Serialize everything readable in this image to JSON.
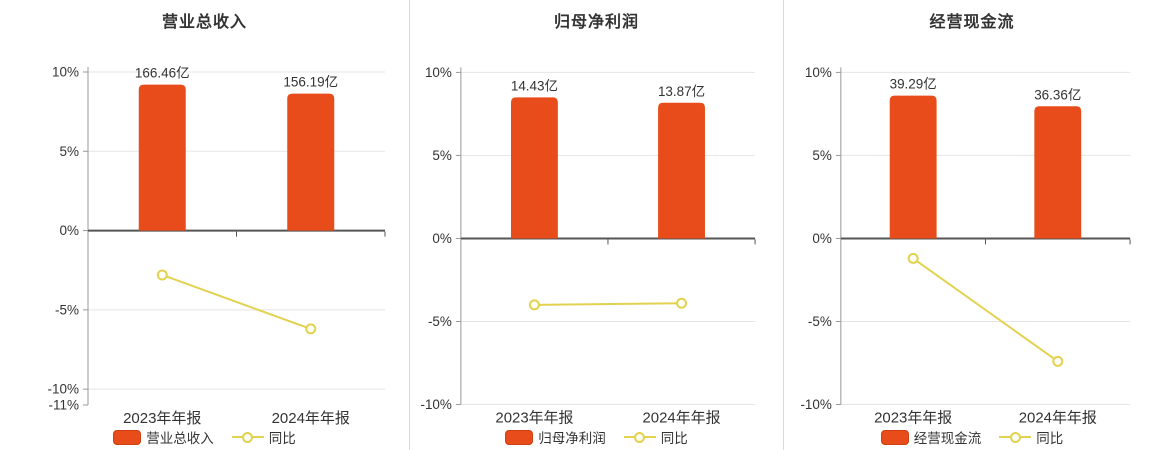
{
  "page": {
    "background": "#ffffff"
  },
  "colors": {
    "bar": "#e74c1a",
    "bar_border": "#cf3f10",
    "line": "#e2d24f",
    "marker_fill": "#fffef5",
    "grid": "#e5e5e5",
    "axis_line": "#999999",
    "zero_axis": "#555555",
    "text": "#333333",
    "divider": "#d9d9d9"
  },
  "chart_data": [
    {
      "type": "bar+line",
      "title": "营业总收入",
      "categories": [
        "2023年年报",
        "2024年年报"
      ],
      "bar_series": {
        "name": "营业总收入",
        "unit": "亿",
        "values": [
          166.46,
          156.19
        ],
        "labels": [
          "166.46亿",
          "156.19亿"
        ],
        "color": "#e74c1a"
      },
      "line_series": {
        "name": "同比",
        "unit": "%",
        "values": [
          -2.8,
          -6.2
        ],
        "color": "#e2d24f"
      },
      "y_tick_labels": [
        "10%",
        "5%",
        "0%",
        "-5%",
        "-10%",
        "-11%"
      ],
      "y_tick_values": [
        10,
        5,
        0,
        -5,
        -10,
        -11
      ],
      "ylim": [
        -11,
        10
      ],
      "grid": true,
      "legend_position": "bottom",
      "legend": [
        "营业总收入",
        "同比"
      ]
    },
    {
      "type": "bar+line",
      "title": "归母净利润",
      "categories": [
        "2023年年报",
        "2024年年报"
      ],
      "bar_series": {
        "name": "归母净利润",
        "unit": "亿",
        "values": [
          14.43,
          13.87
        ],
        "labels": [
          "14.43亿",
          "13.87亿"
        ],
        "color": "#e74c1a"
      },
      "line_series": {
        "name": "同比",
        "unit": "%",
        "values": [
          -4.0,
          -3.9
        ],
        "color": "#e2d24f"
      },
      "y_tick_labels": [
        "10%",
        "5%",
        "0%",
        "-5%",
        "-10%"
      ],
      "y_tick_values": [
        10,
        5,
        0,
        -5,
        -10
      ],
      "ylim": [
        -10,
        10
      ],
      "grid": true,
      "legend_position": "bottom",
      "legend": [
        "归母净利润",
        "同比"
      ]
    },
    {
      "type": "bar+line",
      "title": "经营现金流",
      "categories": [
        "2023年年报",
        "2024年年报"
      ],
      "bar_series": {
        "name": "经营现金流",
        "unit": "亿",
        "values": [
          39.29,
          36.36
        ],
        "labels": [
          "39.29亿",
          "36.36亿"
        ],
        "color": "#e74c1a"
      },
      "line_series": {
        "name": "同比",
        "unit": "%",
        "values": [
          -1.2,
          -7.4
        ],
        "color": "#e2d24f"
      },
      "y_tick_labels": [
        "10%",
        "5%",
        "0%",
        "-5%",
        "-10%"
      ],
      "y_tick_values": [
        10,
        5,
        0,
        -5,
        -10
      ],
      "ylim": [
        -10,
        10
      ],
      "grid": true,
      "legend_position": "bottom",
      "legend": [
        "经营现金流",
        "同比"
      ]
    }
  ]
}
